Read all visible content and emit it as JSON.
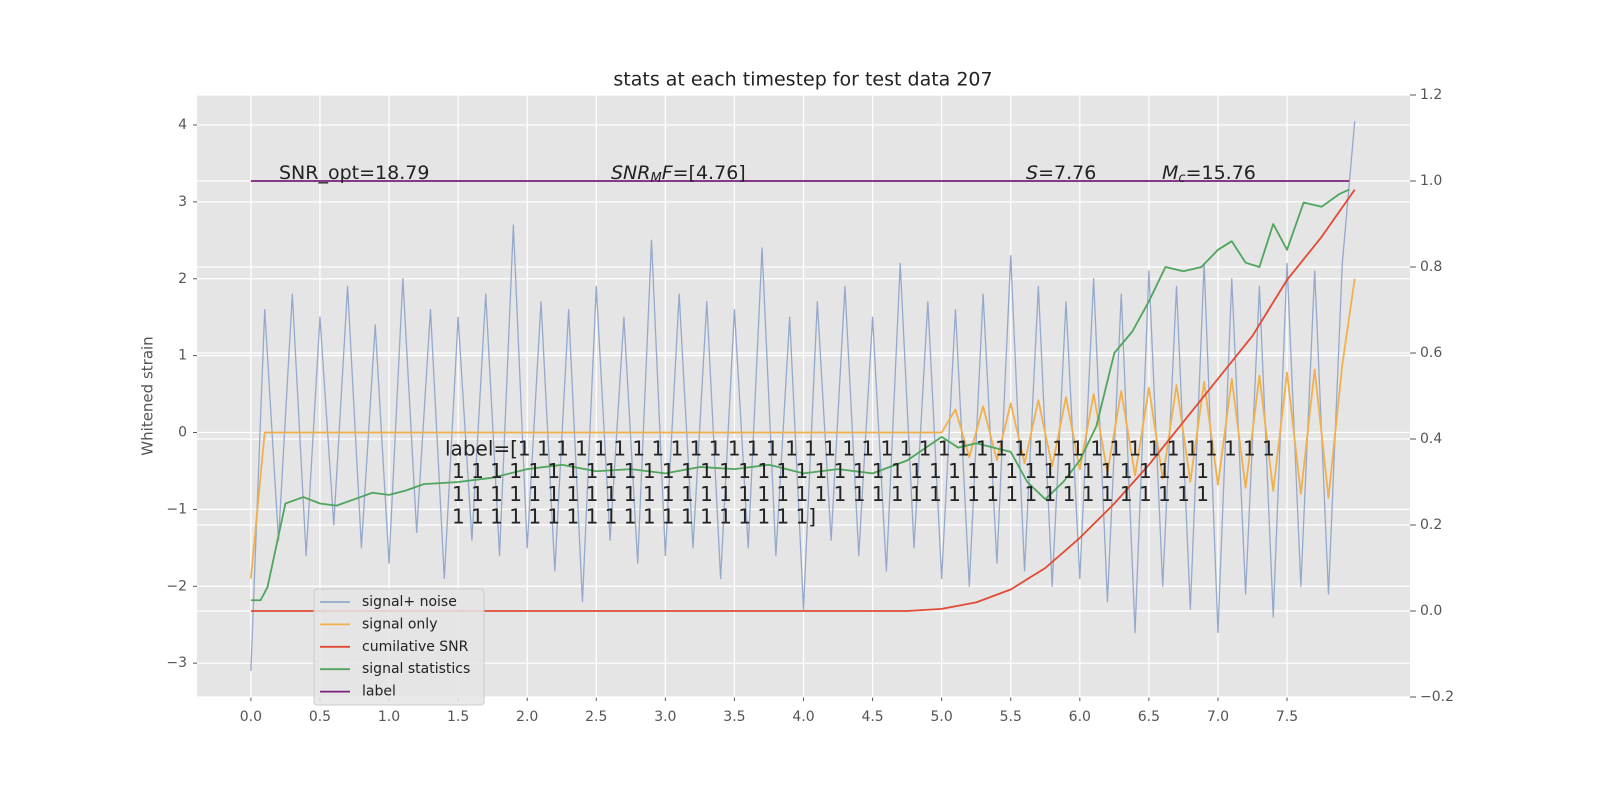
{
  "chart_data": {
    "type": "line",
    "title": "stats at each timestep for test data 207",
    "y_label": "Whitened strain",
    "xlim": [
      -0.39,
      8.39
    ],
    "ylim": [
      -3.44,
      4.39
    ],
    "y2lim": [
      -0.2,
      1.2
    ],
    "grid": true,
    "legend": "lower left",
    "xticks": [
      {
        "value": 0,
        "label": "0.0"
      },
      {
        "value": 0.5,
        "label": "0.5"
      },
      {
        "value": 1,
        "label": "1.0"
      },
      {
        "value": 1.5,
        "label": "1.5"
      },
      {
        "value": 2,
        "label": "2.0"
      },
      {
        "value": 2.5,
        "label": "2.5"
      },
      {
        "value": 3,
        "label": "3.0"
      },
      {
        "value": 3.5,
        "label": "3.5"
      },
      {
        "value": 4,
        "label": "4.0"
      },
      {
        "value": 4.5,
        "label": "4.5"
      },
      {
        "value": 5,
        "label": "5.0"
      },
      {
        "value": 5.5,
        "label": "5.5"
      },
      {
        "value": 6,
        "label": "6.0"
      },
      {
        "value": 6.5,
        "label": "6.5"
      },
      {
        "value": 7,
        "label": "7.0"
      },
      {
        "value": 7.5,
        "label": "7.5"
      }
    ],
    "yticks": [
      {
        "value": -3,
        "label": "−3"
      },
      {
        "value": -2,
        "label": "−2"
      },
      {
        "value": -1,
        "label": "−1"
      },
      0,
      1,
      2,
      3,
      4
    ],
    "y2ticks": [
      {
        "value": -0.2,
        "label": "−0.2"
      },
      {
        "value": 0,
        "label": "0.0"
      },
      {
        "value": 0.2,
        "label": "0.2"
      },
      {
        "value": 0.4,
        "label": "0.4"
      },
      {
        "value": 0.6,
        "label": "0.6"
      },
      {
        "value": 0.8,
        "label": "0.8"
      },
      {
        "value": 1,
        "label": "1.0"
      },
      {
        "value": 1.2,
        "label": "1.2"
      }
    ],
    "series": [
      {
        "name": "signal+ noise",
        "color": "#94a9cb",
        "axis": "y",
        "x": [
          0,
          0.1,
          0.2,
          0.3,
          0.4,
          0.5,
          0.6,
          0.7,
          0.8,
          0.9,
          1,
          1.1,
          1.2,
          1.3,
          1.4,
          1.5,
          1.6,
          1.7,
          1.8,
          1.9,
          2,
          2.1,
          2.2,
          2.3,
          2.4,
          2.5,
          2.6,
          2.7,
          2.8,
          2.9,
          3,
          3.1,
          3.2,
          3.3,
          3.4,
          3.5,
          3.6,
          3.7,
          3.8,
          3.9,
          4,
          4.1,
          4.2,
          4.3,
          4.4,
          4.5,
          4.6,
          4.7,
          4.8,
          4.9,
          5,
          5.1,
          5.2,
          5.3,
          5.4,
          5.5,
          5.6,
          5.7,
          5.8,
          5.9,
          6,
          6.1,
          6.2,
          6.3,
          6.4,
          6.5,
          6.6,
          6.7,
          6.8,
          6.9,
          7,
          7.1,
          7.2,
          7.3,
          7.4,
          7.5,
          7.6,
          7.7,
          7.8,
          7.9,
          7.99
        ],
        "values": [
          -3.1,
          1.6,
          -1.4,
          1.8,
          -1.6,
          1.5,
          -1.2,
          1.9,
          -1.5,
          1.4,
          -1.7,
          2.0,
          -1.3,
          1.6,
          -1.9,
          1.5,
          -1.4,
          1.8,
          -1.6,
          2.7,
          -1.5,
          1.7,
          -1.8,
          1.6,
          -2.2,
          1.9,
          -1.4,
          1.5,
          -1.7,
          2.5,
          -1.6,
          1.8,
          -1.5,
          1.7,
          -1.9,
          1.6,
          -1.5,
          2.4,
          -1.6,
          1.5,
          -2.3,
          1.7,
          -1.4,
          1.9,
          -1.6,
          1.5,
          -1.8,
          2.2,
          -1.5,
          1.7,
          -1.9,
          1.6,
          -2.0,
          1.8,
          -1.7,
          2.3,
          -1.8,
          1.9,
          -2.0,
          1.7,
          -1.9,
          2.0,
          -2.2,
          1.8,
          -2.6,
          2.1,
          -2.0,
          1.9,
          -2.3,
          2.2,
          -2.6,
          2.0,
          -2.1,
          1.9,
          -2.4,
          2.2,
          -2.0,
          2.1,
          -2.1,
          2.2,
          4.05
        ]
      },
      {
        "name": "signal only",
        "color": "#f2b04c",
        "axis": "y",
        "x": [
          0,
          0.1,
          0.2,
          0.3,
          0.4,
          0.5,
          0.6,
          0.7,
          0.8,
          0.9,
          1,
          1.1,
          1.2,
          1.3,
          1.4,
          1.5,
          1.6,
          1.7,
          1.8,
          1.9,
          2,
          2.1,
          2.2,
          2.3,
          2.4,
          2.5,
          2.6,
          2.7,
          2.8,
          2.9,
          3,
          3.1,
          3.2,
          3.3,
          3.4,
          3.5,
          3.6,
          3.7,
          3.8,
          3.9,
          4,
          4.1,
          4.2,
          4.3,
          4.4,
          4.5,
          4.6,
          4.7,
          4.8,
          4.9,
          5,
          5.1,
          5.2,
          5.3,
          5.4,
          5.5,
          5.6,
          5.7,
          5.8,
          5.9,
          6,
          6.1,
          6.2,
          6.3,
          6.4,
          6.5,
          6.6,
          6.7,
          6.8,
          6.9,
          7,
          7.1,
          7.2,
          7.3,
          7.4,
          7.5,
          7.6,
          7.7,
          7.8,
          7.9,
          7.99
        ],
        "values": [
          -1.9,
          0,
          0,
          0,
          0,
          0,
          0,
          0,
          0,
          0,
          0,
          0,
          0,
          0,
          0,
          0,
          0,
          0,
          0,
          0,
          0,
          0,
          0,
          0,
          0,
          0,
          0,
          0,
          0,
          0,
          0,
          0,
          0,
          0,
          0,
          0,
          0,
          0,
          0,
          0,
          0,
          0,
          0,
          0,
          0,
          0,
          0,
          0,
          0,
          0,
          0,
          0.3,
          -0.32,
          0.34,
          -0.36,
          0.38,
          -0.4,
          0.42,
          -0.44,
          0.46,
          -0.48,
          0.5,
          -0.52,
          0.54,
          -0.56,
          0.58,
          -0.6,
          0.62,
          -0.64,
          0.66,
          -0.68,
          0.7,
          -0.72,
          0.74,
          -0.76,
          0.78,
          -0.8,
          0.82,
          -0.85,
          0.88,
          2.0
        ]
      },
      {
        "name": "cumilative SNR",
        "color": "#e24a33",
        "axis": "y2",
        "x": [
          0,
          4.75,
          5,
          5.25,
          5.5,
          5.75,
          6,
          6.25,
          6.5,
          6.75,
          7,
          7.25,
          7.5,
          7.75,
          7.99
        ],
        "values": [
          0,
          0,
          0.005,
          0.02,
          0.05,
          0.1,
          0.17,
          0.25,
          0.34,
          0.44,
          0.54,
          0.64,
          0.77,
          0.87,
          0.98
        ]
      },
      {
        "name": "signal statistics",
        "color": "#4fa55d",
        "axis": "y2",
        "x": [
          0,
          0.07,
          0.12,
          0.25,
          0.38,
          0.5,
          0.62,
          0.75,
          0.88,
          1,
          1.12,
          1.25,
          1.5,
          1.75,
          2,
          2.25,
          2.5,
          2.75,
          3,
          3.25,
          3.5,
          3.75,
          4,
          4.25,
          4.5,
          4.75,
          5,
          5.12,
          5.25,
          5.5,
          5.62,
          5.75,
          5.88,
          6,
          6.12,
          6.25,
          6.38,
          6.5,
          6.62,
          6.75,
          6.88,
          7,
          7.1,
          7.2,
          7.3,
          7.4,
          7.5,
          7.62,
          7.75,
          7.88,
          7.95
        ],
        "values": [
          0.025,
          0.025,
          0.055,
          0.25,
          0.265,
          0.25,
          0.245,
          0.26,
          0.275,
          0.27,
          0.28,
          0.295,
          0.3,
          0.31,
          0.33,
          0.34,
          0.325,
          0.33,
          0.32,
          0.335,
          0.33,
          0.34,
          0.32,
          0.33,
          0.32,
          0.35,
          0.405,
          0.38,
          0.39,
          0.37,
          0.3,
          0.26,
          0.3,
          0.35,
          0.43,
          0.6,
          0.65,
          0.72,
          0.8,
          0.79,
          0.8,
          0.84,
          0.86,
          0.81,
          0.8,
          0.9,
          0.84,
          0.95,
          0.94,
          0.97,
          0.98
        ]
      },
      {
        "name": "label",
        "color": "#7b1f7b",
        "axis": "y2",
        "x": [
          0,
          7.95
        ],
        "values": [
          1,
          1
        ]
      }
    ],
    "annotations": [
      [
        {
          "text": "SNR_opt=18.79",
          "style": "normal"
        }
      ],
      [
        {
          "text": "SNR",
          "style": "italic"
        },
        {
          "text": "M",
          "style": "italic-sub"
        },
        {
          "text": "F",
          "style": "italic"
        },
        {
          "text": "=[4.76]",
          "style": "normal"
        }
      ],
      [
        {
          "text": "S",
          "style": "italic"
        },
        {
          "text": "=7.76",
          "style": "normal"
        }
      ],
      [
        {
          "text": "M",
          "style": "italic"
        },
        {
          "text": "c",
          "style": "italic-sub"
        },
        {
          "text": "=15.76",
          "style": "normal"
        }
      ]
    ],
    "label_text": [
      "label=[1 1 1 1 1 1 1 1 1 1 1 1 1 1 1 1 1 1 1 1 1 1 1 1 1 1 1 1 1 1 1 1 1 1 1 1 1 1 1 1",
      "1 1 1 1 1 1 1 1 1 1 1 1 1 1 1 1 1 1 1 1 1 1 1 1 1 1 1 1 1 1 1 1 1 1 1 1 1 1 1 1",
      "1 1 1 1 1 1 1 1 1 1 1 1 1 1 1 1 1 1 1 1 1 1 1 1 1 1 1 1 1 1 1 1 1 1 1 1 1 1 1 1",
      "1 1 1 1 1 1 1 1 1 1 1 1 1 1 1 1 1 1 1]"
    ]
  }
}
